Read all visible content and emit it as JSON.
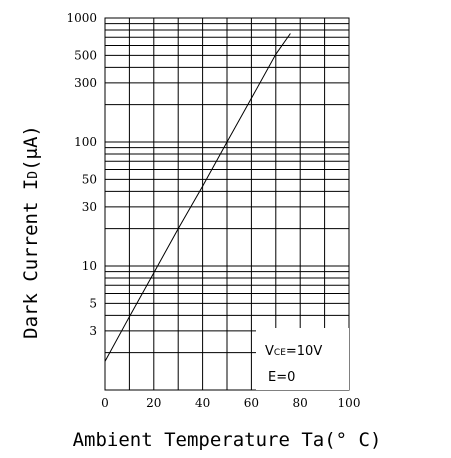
{
  "chart_data": {
    "type": "line",
    "title": "",
    "xlabel": "Ambient Temperature Ta(° C)",
    "ylabel": {
      "prefix": "Dark Current I",
      "subscript": "D",
      "suffix": "(μA)"
    },
    "x_scale": "linear",
    "y_scale": "log",
    "xlim": [
      0,
      100
    ],
    "ylim": [
      1,
      1000
    ],
    "x_ticks": [
      0,
      20,
      40,
      60,
      80,
      100
    ],
    "x_tick_labels": [
      "0",
      "20",
      "40",
      "60",
      "80",
      "100"
    ],
    "y_tick_labels": [
      {
        "value": 3,
        "label": "3"
      },
      {
        "value": 5,
        "label": "5"
      },
      {
        "value": 10,
        "label": "10"
      },
      {
        "value": 30,
        "label": "30"
      },
      {
        "value": 50,
        "label": "50"
      },
      {
        "value": 100,
        "label": "100"
      },
      {
        "value": 300,
        "label": "300"
      },
      {
        "value": 500,
        "label": "500"
      },
      {
        "value": 1000,
        "label": "1000"
      }
    ],
    "grid": true,
    "series": [
      {
        "x": [
          0,
          10,
          20,
          30,
          40,
          50,
          60,
          70,
          76
        ],
        "y": [
          1.7,
          3.9,
          8.8,
          20,
          44,
          100,
          225,
          510,
          750
        ]
      }
    ],
    "annotations": [
      {
        "id": "vce",
        "prefix": "V",
        "subscript": "CE",
        "suffix": "=10V"
      },
      {
        "id": "illum",
        "text": "E=0"
      }
    ]
  }
}
